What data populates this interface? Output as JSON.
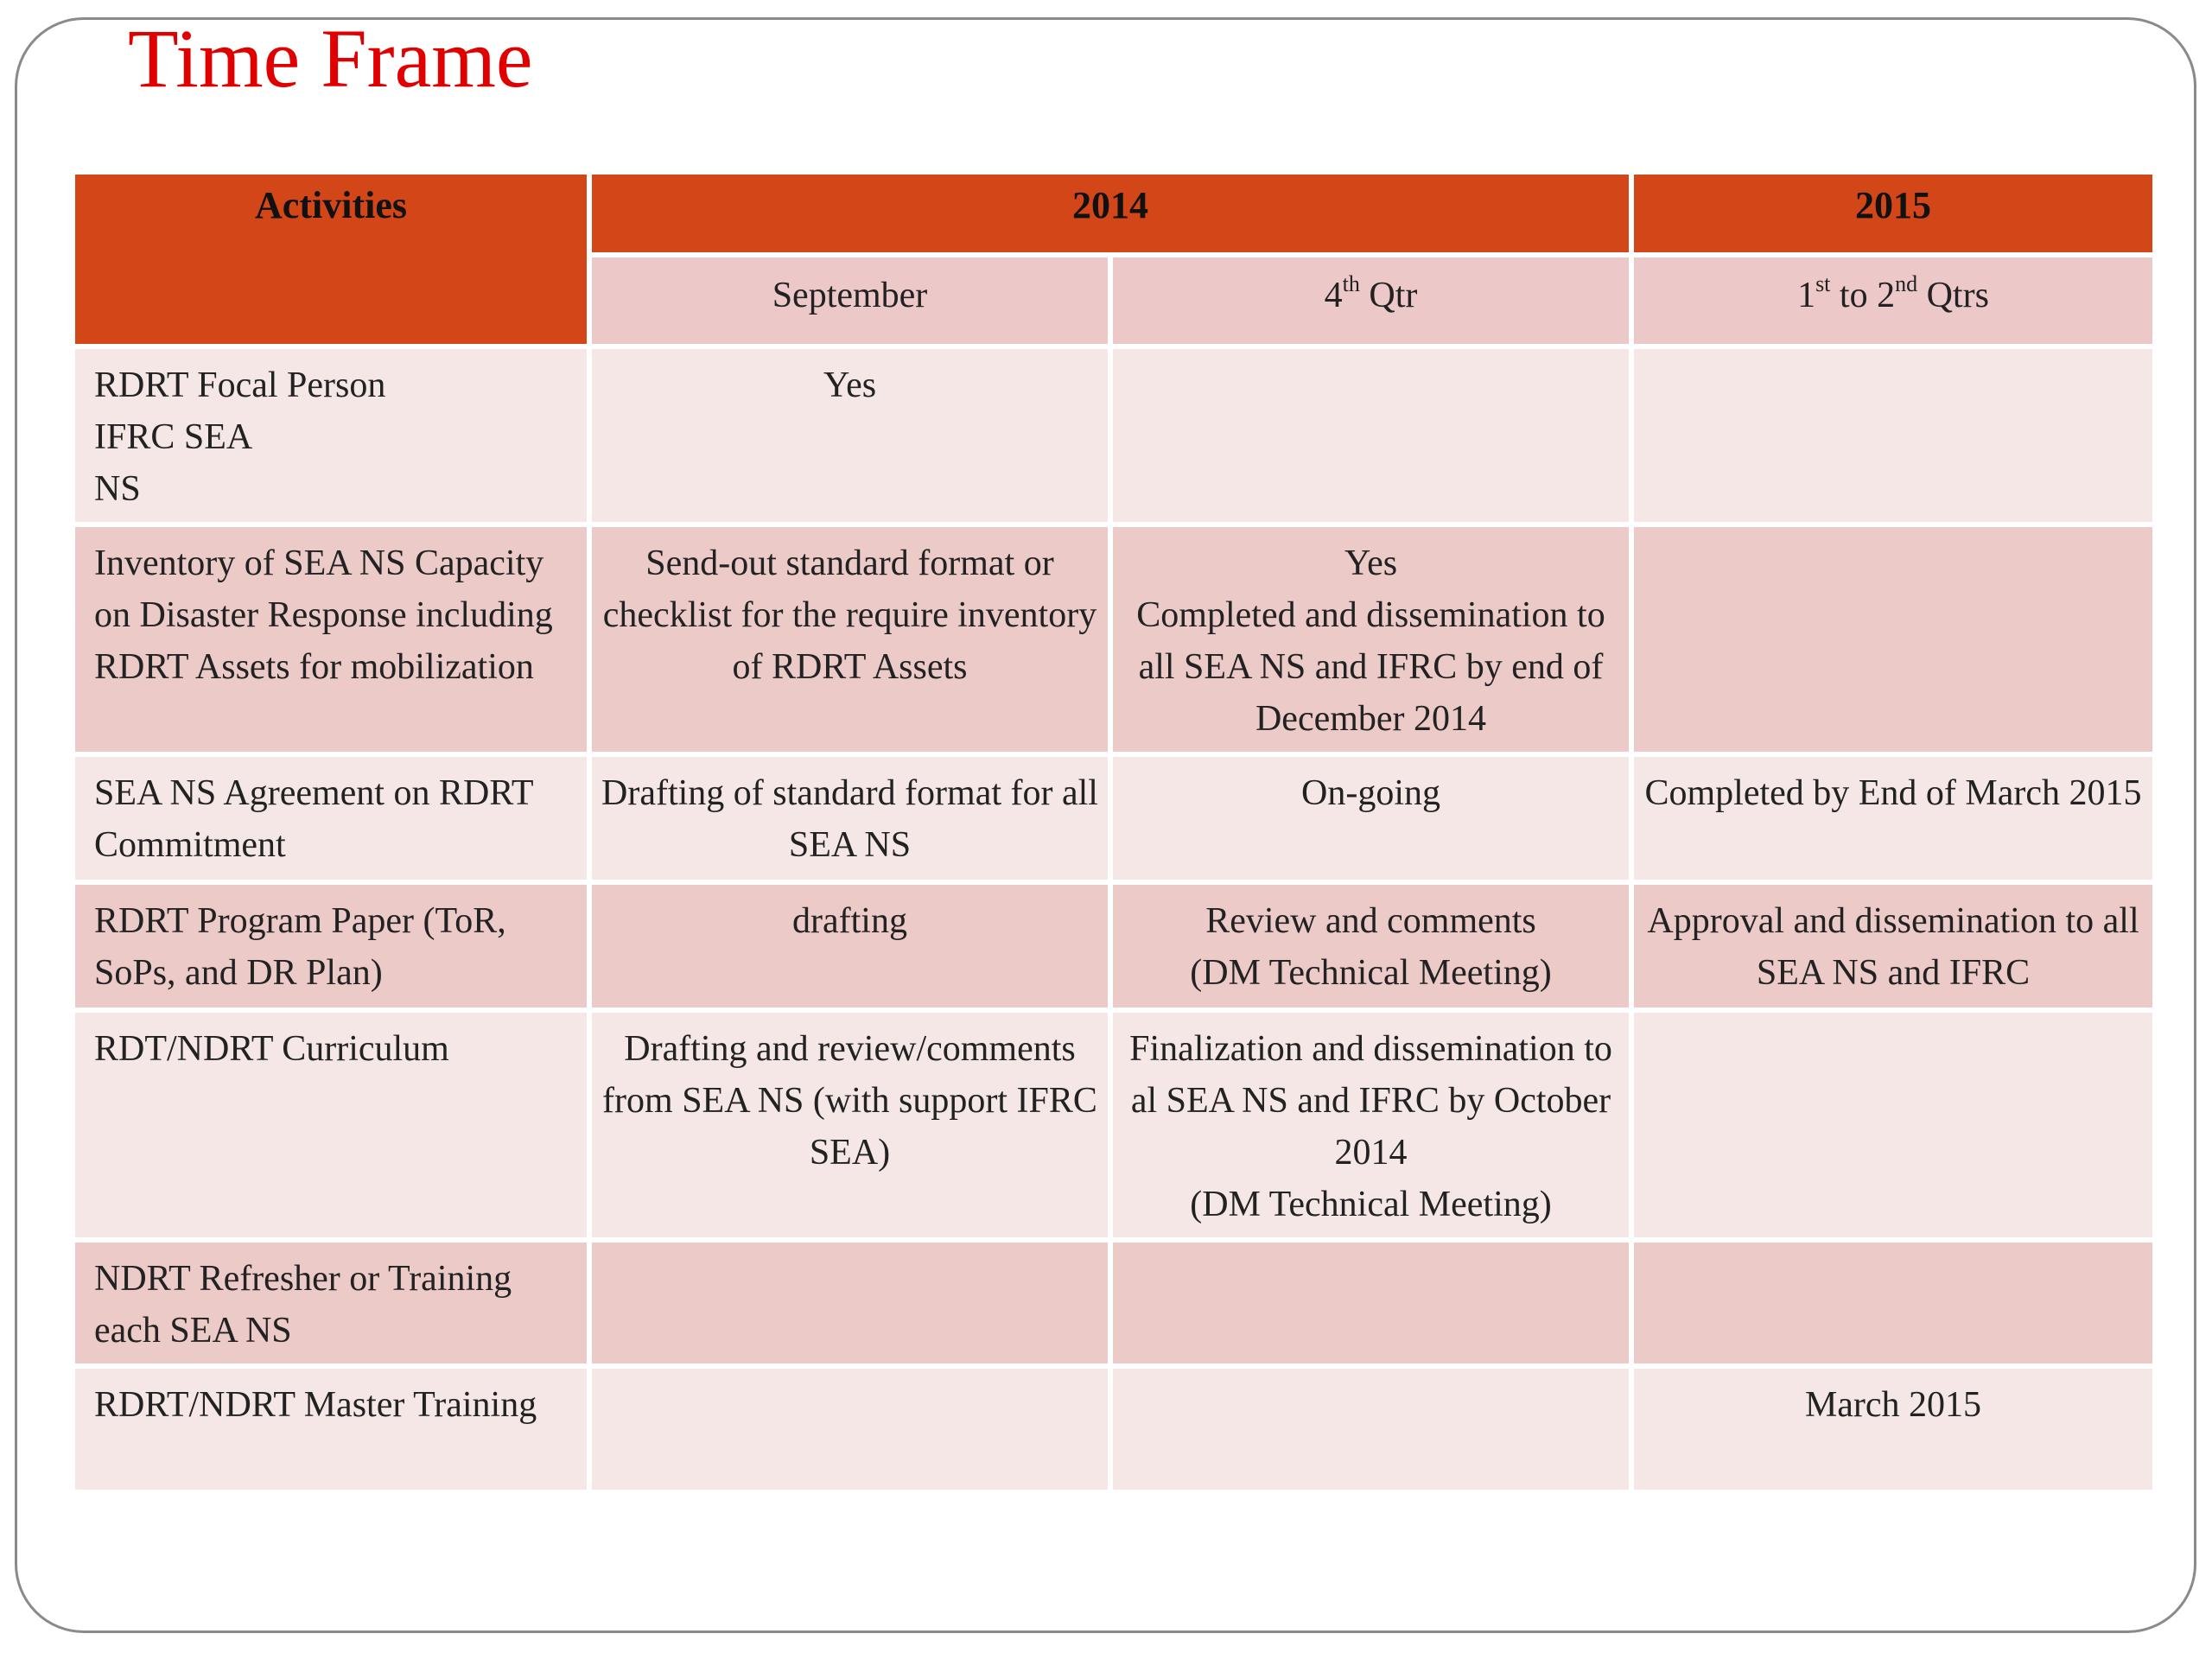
{
  "title": "Time Frame",
  "table": {
    "header": {
      "activities": "Activities",
      "year_2014": "2014",
      "year_2015": "2015"
    },
    "subheader": {
      "september": "September",
      "q4_num": "4",
      "q4_sup": "th",
      "q4_rest": " Qtr",
      "q12_a": "1",
      "q12_a_sup": "st",
      "q12_mid": " to 2",
      "q12_b_sup": "nd",
      "q12_rest": " Qtrs"
    },
    "rows": [
      {
        "activity": "RDRT Focal Person\nIFRC SEA\nNS",
        "september": "Yes",
        "q4": "",
        "y2015": ""
      },
      {
        "activity": "Inventory of SEA NS Capacity on Disaster Response including RDRT Assets for mobilization",
        "september": "Send-out standard format or checklist for the require inventory of RDRT Assets",
        "q4": "Yes\nCompleted and dissemination to all SEA NS and IFRC by end of December 2014",
        "y2015": ""
      },
      {
        "activity": "SEA NS Agreement on RDRT Commitment",
        "september": "Drafting of standard format for all SEA NS",
        "q4": "On-going",
        "y2015": "Completed by End of March 2015"
      },
      {
        "activity": "RDRT Program Paper (ToR, SoPs, and DR Plan)",
        "september": "drafting",
        "q4": "Review and comments\n(DM Technical Meeting)",
        "y2015": "Approval and dissemination to all SEA NS and IFRC"
      },
      {
        "activity": "RDT/NDRT Curriculum",
        "september": "Drafting and review/comments from SEA NS (with support IFRC SEA)",
        "q4": "Finalization and dissemination to al SEA NS and IFRC by October 2014\n(DM Technical Meeting)",
        "y2015": ""
      },
      {
        "activity": "NDRT Refresher or Training each SEA NS",
        "september": "",
        "q4": "",
        "y2015": ""
      },
      {
        "activity": "RDRT/NDRT Master Training",
        "september": "",
        "q4": "",
        "y2015": "March 2015"
      }
    ]
  },
  "colors": {
    "title": "#e00000",
    "header_bg": "#d24617",
    "row_light": "#f5e7e6",
    "row_dark": "#ebcac8"
  }
}
